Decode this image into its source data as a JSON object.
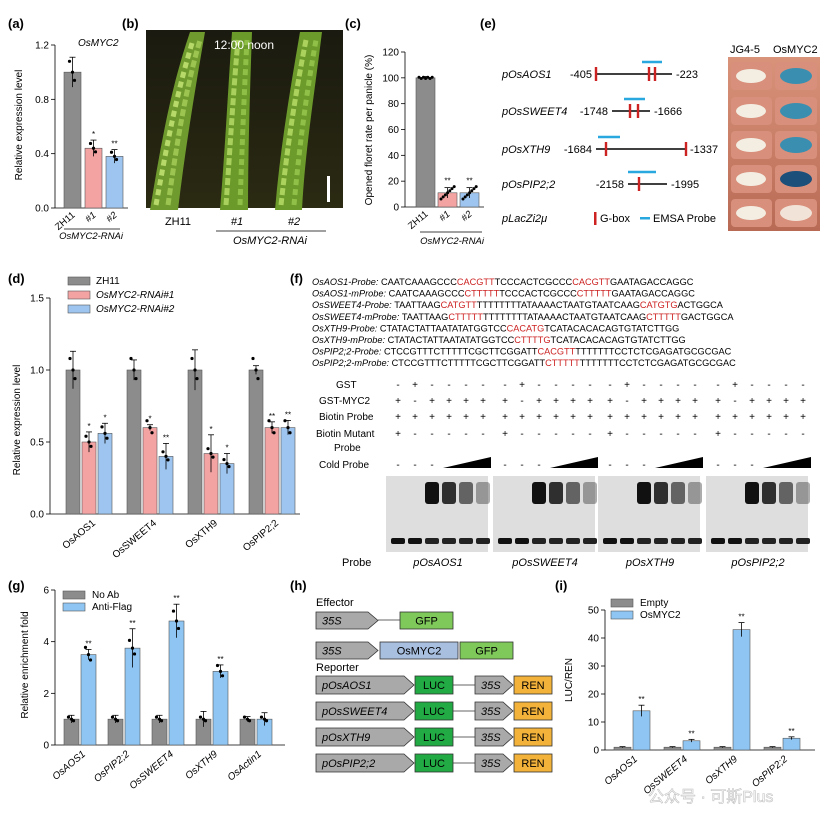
{
  "colors": {
    "zh11": "#8c8c8c",
    "rnai1": "#f4a3a3",
    "rnai2": "#9ec5ef",
    "antiflag": "#8ec5f2",
    "noab": "#8c8c8c",
    "probe_red": "#cc2222",
    "emsa_blue": "#29a8e0",
    "gbox_red": "#cc2222",
    "luc_green": "#22aa44",
    "gfp_green": "#7fc85a",
    "ren_orange": "#f3b23a",
    "arrow_gray": "#999999"
  },
  "panel_labels": {
    "a": "(a)",
    "b": "(b)",
    "c": "(c)",
    "d": "(d)",
    "e": "(e)",
    "f": "(f)",
    "g": "(g)",
    "h": "(h)",
    "i": "(i)"
  },
  "panel_a": {
    "gene_title": "OsMYC2",
    "ylabel": "Relative expression level",
    "group_label": "OsMYC2-RNAi",
    "chart_data": {
      "type": "bar",
      "categories": [
        "ZH11",
        "#1",
        "#2"
      ],
      "values": [
        1.0,
        0.44,
        0.38
      ],
      "errors": [
        0.11,
        0.06,
        0.05
      ],
      "significance": [
        "",
        "*",
        "**"
      ],
      "ylim": [
        0,
        1.2
      ],
      "yticks": [
        "0.0",
        "0.4",
        "0.8",
        "1.2"
      ]
    }
  },
  "panel_b": {
    "time_label": "12:00 noon",
    "labels": [
      "ZH11",
      "#1",
      "#2"
    ],
    "group_label": "OsMYC2-RNAi"
  },
  "panel_c": {
    "ylabel": "Opened floret rate per panicle (%)",
    "group_label": "OsMYC2-RNAi",
    "chart_data": {
      "type": "bar",
      "categories": [
        "ZH11",
        "#1",
        "#2"
      ],
      "values": [
        100,
        11,
        11
      ],
      "errors": [
        1,
        4,
        4
      ],
      "significance": [
        "",
        "**",
        "**"
      ],
      "ylim": [
        0,
        120
      ],
      "yticks": [
        "0",
        "20",
        "40",
        "60",
        "80",
        "100",
        "120"
      ]
    }
  },
  "panel_e": {
    "yeast_header": [
      "JG4-5",
      "OsMYC2"
    ],
    "constructs": [
      {
        "name": "pOsAOS1",
        "left": "-405",
        "right": "-223"
      },
      {
        "name": "pOsSWEET4",
        "left": "-1748",
        "right": "-1666"
      },
      {
        "name": "pOsXTH9",
        "left": "-1684",
        "right": "-1337"
      },
      {
        "name": "pOsPIP2;2",
        "left": "-2158",
        "right": "-1995"
      }
    ],
    "control": "pLacZi2μ",
    "legend_gbox": "G-box",
    "legend_probe": "EMSA Probe"
  },
  "panel_d": {
    "ylabel": "Relative expression level",
    "legend": [
      "ZH11",
      "OsMYC2-RNAi#1",
      "OsMYC2-RNAi#2"
    ],
    "chart_data": {
      "type": "bar",
      "categories": [
        "OsAOS1",
        "OsSWEET4",
        "OsXTH9",
        "OsPIP2;2"
      ],
      "series": [
        {
          "name": "ZH11",
          "values": [
            1.0,
            1.0,
            1.0,
            1.0
          ],
          "errors": [
            0.13,
            0.07,
            0.14,
            0.03
          ]
        },
        {
          "name": "OsMYC2-RNAi#1",
          "values": [
            0.5,
            0.6,
            0.42,
            0.6
          ],
          "errors": [
            0.07,
            0.02,
            0.13,
            0.04
          ]
        },
        {
          "name": "OsMYC2-RNAi#2",
          "values": [
            0.56,
            0.4,
            0.35,
            0.6
          ],
          "errors": [
            0.07,
            0.09,
            0.07,
            0.05
          ]
        }
      ],
      "significance": [
        [
          "",
          "*",
          "*"
        ],
        [
          "",
          "*",
          "**"
        ],
        [
          "",
          "*",
          "*"
        ],
        [
          "",
          "**",
          "**"
        ]
      ],
      "ylim": [
        0,
        1.5
      ],
      "yticks": [
        "0.0",
        "0.5",
        "1.0",
        "1.5"
      ]
    }
  },
  "panel_f": {
    "probes": [
      {
        "label": "OsAOS1-Probe:",
        "segs": [
          [
            "CAATCAAAGCCC",
            0
          ],
          [
            "CACGTT",
            1
          ],
          [
            "TCCCACTCGCCC",
            0
          ],
          [
            "CACGTT",
            1
          ],
          [
            "GAATAGACCAGGC",
            0
          ]
        ]
      },
      {
        "label": "OsAOS1-mProbe:",
        "segs": [
          [
            "CAATCAAAGCCC",
            0
          ],
          [
            "CTTTTT",
            1
          ],
          [
            "TCCCACTCGCCC",
            0
          ],
          [
            "CTTTTT",
            1
          ],
          [
            "GAATAGACCAGGC",
            0
          ]
        ]
      },
      {
        "label": "OsSWEET4-Probe:",
        "segs": [
          [
            "TAATTAAG",
            0
          ],
          [
            "CATGTT",
            1
          ],
          [
            "TTTTTTTTATAAAACTAATGTAATCAAG",
            0
          ],
          [
            "CATGTG",
            1
          ],
          [
            "ACTGGCA",
            0
          ]
        ]
      },
      {
        "label": "OsSWEET4-mProbe:",
        "segs": [
          [
            "TAATTAAG",
            0
          ],
          [
            "CTTTTT",
            1
          ],
          [
            "TTTTTTTTATAAAACTAATGTAATCAAG",
            0
          ],
          [
            "CTTTTT",
            1
          ],
          [
            "GACTGGCA",
            0
          ]
        ]
      },
      {
        "label": "OsXTH9-Probe:",
        "segs": [
          [
            "CTATACTATTAATATATGGTCC",
            0
          ],
          [
            "CACATG",
            1
          ],
          [
            "TCATACACACAGTGTATCTTGG",
            0
          ]
        ]
      },
      {
        "label": "OsXTH9-mProbe:",
        "segs": [
          [
            "CTATACTATTAATATATGGTCC",
            0
          ],
          [
            "CTTTTG",
            1
          ],
          [
            "TCATACACACAGTGTATCTTGG",
            0
          ]
        ]
      },
      {
        "label": "OsPIP2;2-Probe:",
        "segs": [
          [
            "CTCCGTTTCTTTTTCGCTTCGGATT",
            0
          ],
          [
            "CACGTT",
            1
          ],
          [
            "TTTTTTTCCTCTCGAGATGCGCGAC",
            0
          ]
        ]
      },
      {
        "label": "OsPIP2;2-mProbe:",
        "segs": [
          [
            "CTCCGTTTCTTTTTCGCTTCGGATT",
            0
          ],
          [
            "CTTTTT",
            1
          ],
          [
            "TTTTTTTCCTCTCGAGATGCGCGAC",
            0
          ]
        ]
      }
    ],
    "row_labels": [
      "GST",
      "GST-MYC2",
      "Biotin Probe",
      "Biotin Mutant Probe",
      "Cold Probe"
    ],
    "signs": [
      [
        "-",
        "+",
        "-",
        "-",
        "-",
        "-"
      ],
      [
        "+",
        "-",
        "+",
        "+",
        "+",
        "+"
      ],
      [
        "+",
        "+",
        "+",
        "+",
        "+",
        "+"
      ],
      [
        "+",
        "-",
        "-",
        "-",
        "-",
        "-"
      ],
      [
        "-",
        "-",
        "-",
        "",
        "",
        ""
      ]
    ],
    "probe_prefix": "Probe",
    "probe_names": [
      "pOsAOS1",
      "pOsSWEET4",
      "pOsXTH9",
      "pOsPIP2;2"
    ]
  },
  "panel_g": {
    "ylabel": "Relative enrichment fold",
    "legend": [
      "No Ab",
      "Anti-Flag"
    ],
    "chart_data": {
      "type": "bar",
      "categories": [
        "OsAOS1",
        "OsPIP2;2",
        "OsSWEET4",
        "OsXTH9",
        "OsActin1"
      ],
      "series": [
        {
          "name": "No Ab",
          "values": [
            1.0,
            1.0,
            1.0,
            1.0,
            1.0
          ],
          "errors": [
            0.15,
            0.15,
            0.15,
            0.3,
            0.1
          ]
        },
        {
          "name": "Anti-Flag",
          "values": [
            3.5,
            3.75,
            4.8,
            2.85,
            1.0
          ],
          "errors": [
            0.2,
            0.75,
            0.65,
            0.25,
            0.25
          ]
        }
      ],
      "significance": [
        [
          "",
          "**"
        ],
        [
          "",
          "**"
        ],
        [
          "",
          "**"
        ],
        [
          "",
          "**"
        ],
        [
          "",
          ""
        ]
      ],
      "ylim": [
        0,
        6
      ],
      "yticks": [
        "0",
        "2",
        "4",
        "6"
      ]
    }
  },
  "panel_h": {
    "effector_title": "Effector",
    "reporter_title": "Reporter",
    "promoter35s": "35S",
    "gfp": "GFP",
    "myc2": "OsMYC2",
    "luc": "LUC",
    "ren": "REN",
    "reporters": [
      "pOsAOS1",
      "pOsSWEET4",
      "pOsXTH9",
      "pOsPIP2;2"
    ]
  },
  "panel_i": {
    "ylabel": "LUC/REN",
    "legend": [
      "Empty",
      "OsMYC2"
    ],
    "chart_data": {
      "type": "bar",
      "categories": [
        "OsAOS1",
        "OsSWEET4",
        "OsXTH9",
        "OsPIP2;2"
      ],
      "series": [
        {
          "name": "Empty",
          "values": [
            1.0,
            1.0,
            1.0,
            1.0
          ],
          "errors": [
            0.2,
            0.2,
            0.2,
            0.2
          ]
        },
        {
          "name": "OsMYC2",
          "values": [
            14,
            3.3,
            43,
            4.2
          ],
          "errors": [
            2,
            0.5,
            2.5,
            0.5
          ]
        }
      ],
      "significance": [
        [
          "",
          "**"
        ],
        [
          "",
          "**"
        ],
        [
          "",
          "**"
        ],
        [
          "",
          "**"
        ]
      ],
      "ylim": [
        0,
        50
      ],
      "yticks": [
        "0",
        "10",
        "20",
        "30",
        "40",
        "50"
      ]
    }
  },
  "watermark": "公众号 · 可斯Plus"
}
